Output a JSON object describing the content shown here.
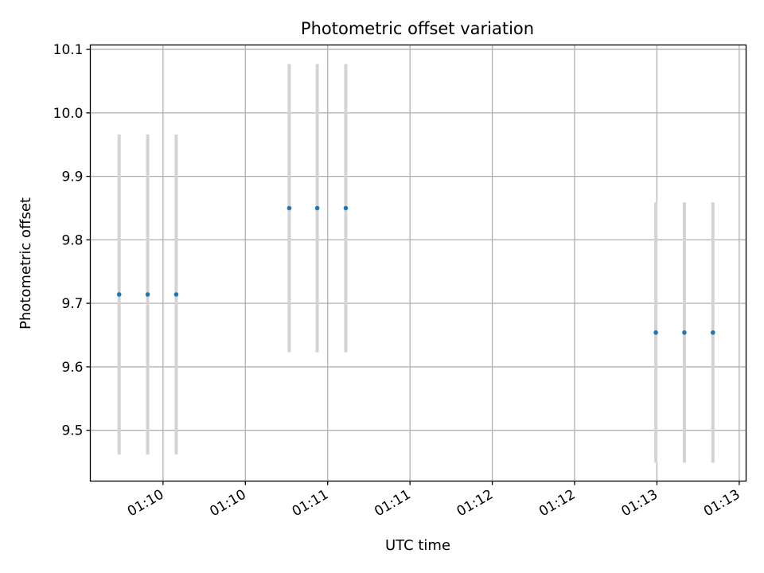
{
  "chart_data": {
    "type": "scatter",
    "title": "Photometric offset variation",
    "xlabel": "UTC time",
    "ylabel": "Photometric offset",
    "grid": true,
    "x_ticks": [
      "01:10",
      "01:10",
      "01:11",
      "01:11",
      "01:12",
      "01:12",
      "01:13",
      "01:13"
    ],
    "x_tick_seconds": [
      600,
      630,
      660,
      690,
      720,
      750,
      780,
      810
    ],
    "xlim_seconds": [
      573.5,
      812.5
    ],
    "y_ticks": [
      "9.5",
      "9.6",
      "9.7",
      "9.8",
      "9.9",
      "10.0",
      "10.1"
    ],
    "ylim": [
      9.42,
      10.107
    ],
    "colors": {
      "points": "#1f77b4",
      "errorbars": "#d3d3d3",
      "grid": "#b0b0b0"
    },
    "series": [
      {
        "x_seconds": [
          584.0,
          594.4,
          604.8,
          646.0,
          656.2,
          666.6,
          779.6,
          790.0,
          800.4
        ],
        "y": [
          9.714,
          9.714,
          9.714,
          9.85,
          9.85,
          9.85,
          9.654,
          9.654,
          9.654
        ],
        "yerr": [
          0.252,
          0.252,
          0.252,
          0.227,
          0.227,
          0.227,
          0.205,
          0.205,
          0.205
        ]
      }
    ]
  }
}
